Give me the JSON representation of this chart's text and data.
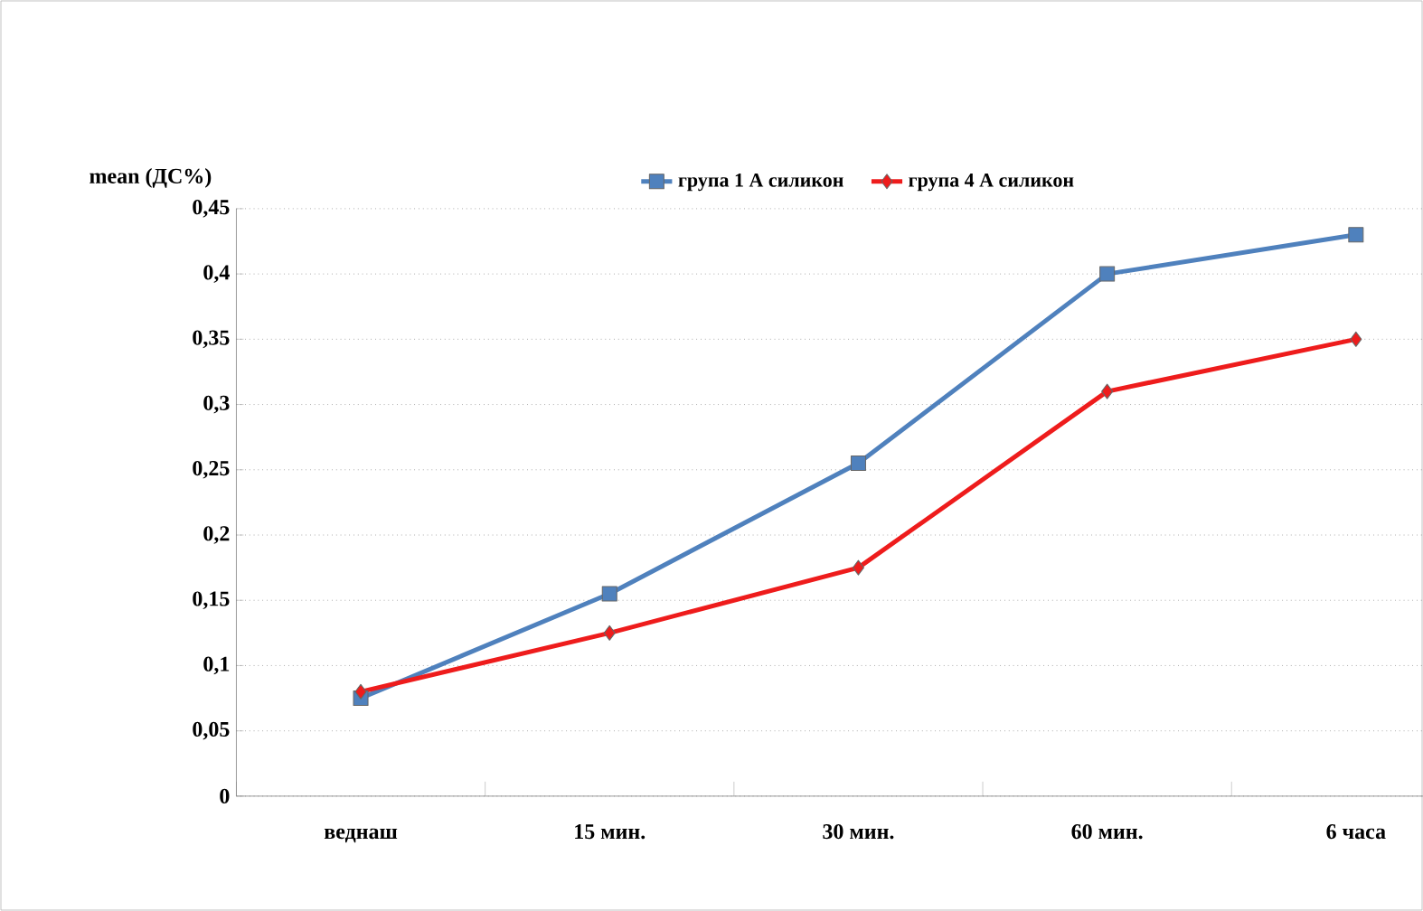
{
  "chart_data": {
    "type": "line",
    "ylabel": "mean (ДС%)",
    "categories": [
      "веднаш",
      "15 мин.",
      "30 мин.",
      "60 мин.",
      "6 часа"
    ],
    "series": [
      {
        "name": "група 1 А силикон",
        "color": "#4f81bd",
        "marker": "square",
        "values": [
          0.075,
          0.155,
          0.255,
          0.4,
          0.43
        ]
      },
      {
        "name": "група 4 А силикон",
        "color": "#ee1c1c",
        "marker": "diamond",
        "values": [
          0.08,
          0.125,
          0.175,
          0.31,
          0.35
        ]
      }
    ],
    "ylim": [
      0,
      0.45
    ],
    "yticks": [
      0,
      {
        "value": 0.05,
        "label": "0,05"
      },
      {
        "value": 0.1,
        "label": "0,1"
      },
      {
        "value": 0.15,
        "label": "0,15"
      },
      {
        "value": 0.2,
        "label": "0,2"
      },
      {
        "value": 0.25,
        "label": "0,25"
      },
      {
        "value": 0.3,
        "label": "0,3"
      },
      {
        "value": 0.35,
        "label": "0,35"
      },
      {
        "value": 0.4,
        "label": "0,4"
      },
      {
        "value": 0.45,
        "label": "0,45"
      }
    ],
    "grid": "y",
    "legend": "top",
    "line_style": "solid"
  }
}
